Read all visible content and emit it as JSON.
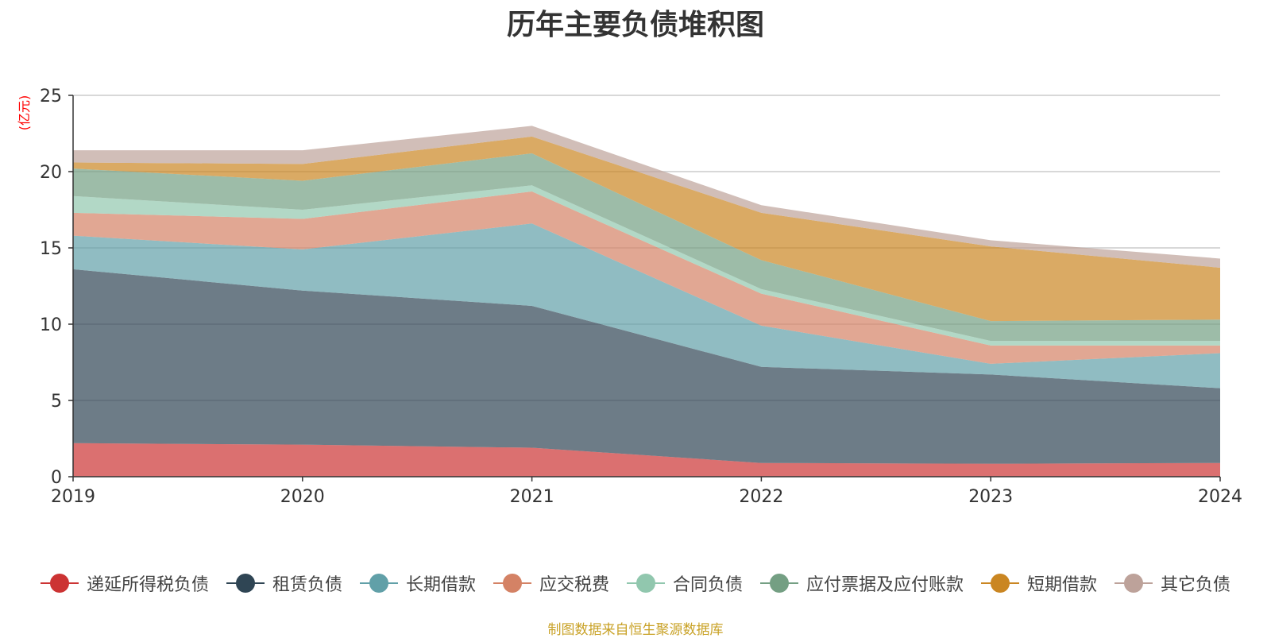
{
  "title": "历年主要负债堆积图",
  "source": "制图数据来自恒生聚源数据库",
  "chart_data": {
    "type": "area",
    "stacked": true,
    "unit_label": "(亿元)",
    "x": [
      "2019",
      "2020",
      "2021",
      "2022",
      "2023",
      "2024"
    ],
    "ylim": [
      0,
      25
    ],
    "yticks": [
      0,
      5,
      10,
      15,
      20,
      25
    ],
    "grid": true,
    "legend_position": "bottom",
    "series": [
      {
        "name": "递延所得税负债",
        "color": "#cc3333",
        "values": [
          2.2,
          2.1,
          1.9,
          0.9,
          0.85,
          0.9
        ]
      },
      {
        "name": "租赁负债",
        "color": "#2f4554",
        "values": [
          11.4,
          10.1,
          9.3,
          6.3,
          5.85,
          4.9
        ]
      },
      {
        "name": "长期借款",
        "color": "#61a0a8",
        "values": [
          2.2,
          2.7,
          5.4,
          2.7,
          0.7,
          2.3
        ]
      },
      {
        "name": "应交税费",
        "color": "#d48265",
        "values": [
          1.5,
          2.0,
          2.1,
          2.1,
          1.2,
          0.5
        ]
      },
      {
        "name": "合同负债",
        "color": "#91c7ae",
        "values": [
          1.1,
          0.6,
          0.4,
          0.3,
          0.3,
          0.3
        ]
      },
      {
        "name": "应付票据及应付账款",
        "color": "#749f83",
        "values": [
          1.8,
          1.9,
          2.1,
          1.9,
          1.3,
          1.4
        ]
      },
      {
        "name": "短期借款",
        "color": "#ca8622",
        "values": [
          0.4,
          1.1,
          1.1,
          3.1,
          4.9,
          3.4
        ]
      },
      {
        "name": "其它负债",
        "color": "#bda29a",
        "values": [
          0.8,
          0.9,
          0.7,
          0.5,
          0.4,
          0.6
        ]
      }
    ]
  }
}
